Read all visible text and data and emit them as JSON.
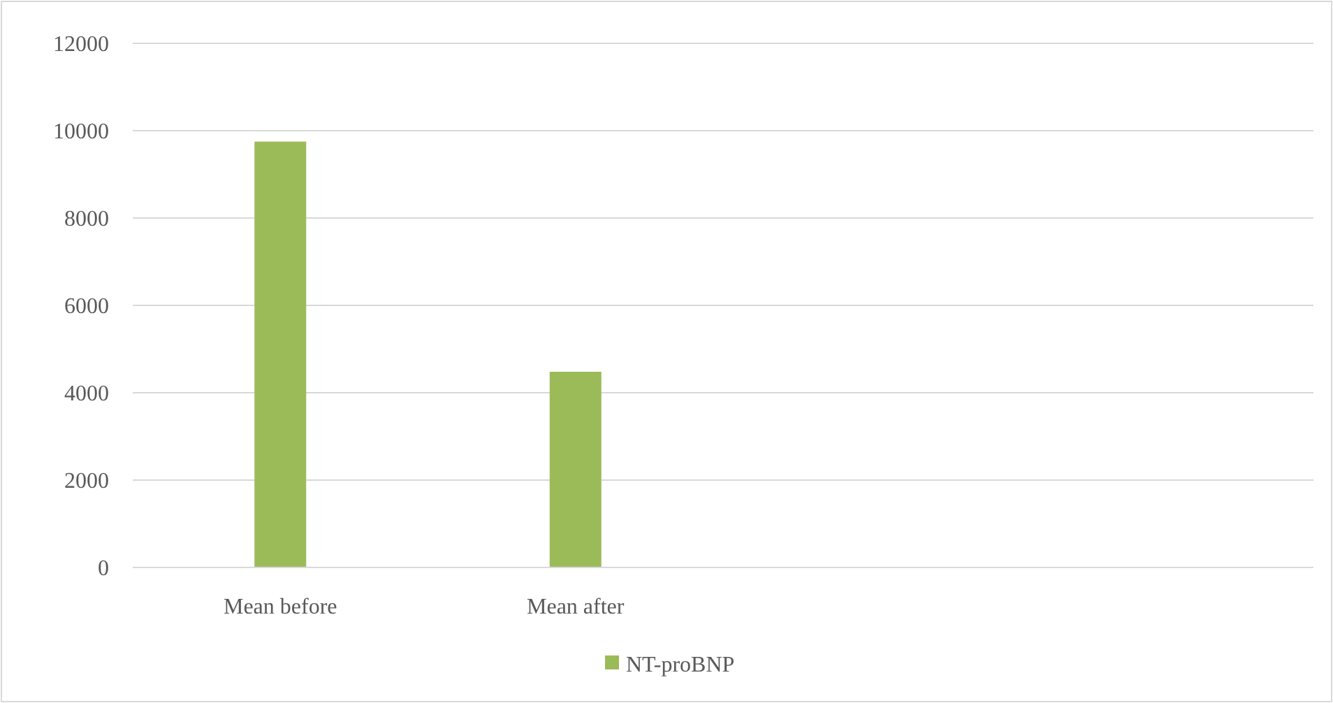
{
  "chart_data": {
    "type": "bar",
    "categories": [
      "Mean before",
      "Mean after",
      null,
      null
    ],
    "series": [
      {
        "name": "NT-proBNP",
        "color": "#9bbb59",
        "values": [
          9750,
          4480,
          null,
          null
        ]
      }
    ],
    "ylim": [
      0,
      12000
    ],
    "yticks": [
      0,
      2000,
      4000,
      6000,
      8000,
      10000,
      12000
    ],
    "grid": "y",
    "legend": "bottom"
  }
}
